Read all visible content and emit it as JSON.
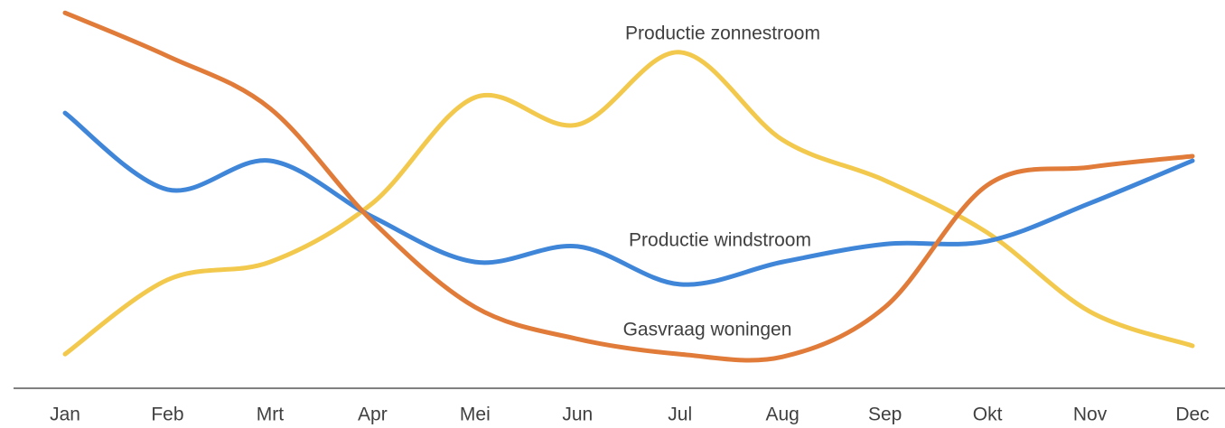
{
  "chart_data": {
    "type": "line",
    "categories": [
      "Jan",
      "Feb",
      "Mrt",
      "Apr",
      "Mei",
      "Jun",
      "Jul",
      "Aug",
      "Sep",
      "Okt",
      "Nov",
      "Dec"
    ],
    "ylim": [
      0,
      100
    ],
    "series": [
      {
        "name": "Productie zonnestroom",
        "color": "#f2c94c",
        "values": [
          9,
          28.6,
          33.3,
          48.8,
          76.7,
          69.5,
          88.6,
          65.5,
          54.8,
          41,
          20.2,
          11.2
        ]
      },
      {
        "name": "Productie windstroom",
        "color": "#3f86d9",
        "values": [
          72.6,
          52.4,
          60,
          45.2,
          33.3,
          37.4,
          27.4,
          33.3,
          38,
          38.8,
          48.8,
          60
        ]
      },
      {
        "name": "Gasvraag woningen",
        "color": "#e07b39",
        "values": [
          99,
          87.6,
          73.8,
          44,
          21.4,
          13,
          9,
          8.3,
          21.4,
          53.6,
          58.3,
          61.2
        ]
      }
    ]
  }
}
